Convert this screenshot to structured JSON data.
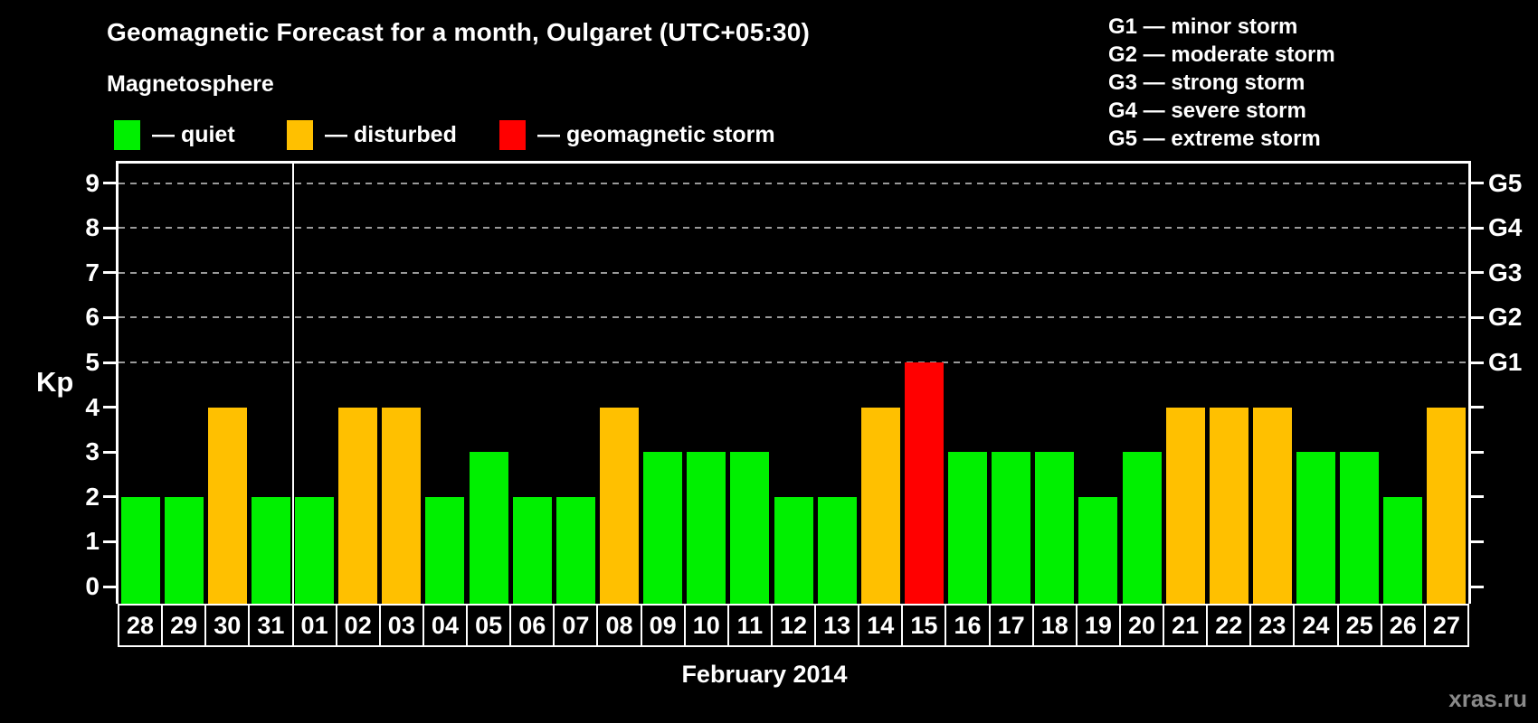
{
  "title": "Geomagnetic Forecast for a month, Oulgaret (UTC+05:30)",
  "magnetosphere_label": "Magnetosphere",
  "legend_items": [
    {
      "key": "quiet",
      "label": "— quiet",
      "color": "#00F000"
    },
    {
      "key": "disturbed",
      "label": "— disturbed",
      "color": "#FFC000"
    },
    {
      "key": "storm",
      "label": "— geomagnetic storm",
      "color": "#FF0000"
    }
  ],
  "storm_scale_legend": [
    "G1 — minor storm",
    "G2 — moderate storm",
    "G3 — strong storm",
    "G4 — severe storm",
    "G5 — extreme storm"
  ],
  "watermark": "xras.ru",
  "chart_data": {
    "type": "bar",
    "title": "Geomagnetic Forecast for a month, Oulgaret (UTC+05:30)",
    "xlabel": "February 2014",
    "ylabel": "Kp",
    "ylim": [
      0,
      9
    ],
    "y_ticks": [
      0,
      1,
      2,
      3,
      4,
      5,
      6,
      7,
      8,
      9
    ],
    "grid": "dashed horizontal gridlines at Kp 5–9 (storm levels G1–G5)",
    "legend_position": "top",
    "right_axis": {
      "labels": [
        "G1",
        "G2",
        "G3",
        "G4",
        "G5"
      ],
      "kp_levels": [
        5,
        6,
        7,
        8,
        9
      ]
    },
    "categories": [
      "28",
      "29",
      "30",
      "31",
      "01",
      "02",
      "03",
      "04",
      "05",
      "06",
      "07",
      "08",
      "09",
      "10",
      "11",
      "12",
      "13",
      "14",
      "15",
      "16",
      "17",
      "18",
      "19",
      "20",
      "21",
      "22",
      "23",
      "24",
      "25",
      "26",
      "27"
    ],
    "values": [
      2,
      2,
      4,
      2,
      2,
      4,
      4,
      2,
      3,
      2,
      2,
      4,
      3,
      3,
      3,
      2,
      2,
      4,
      5,
      3,
      3,
      3,
      2,
      3,
      4,
      4,
      4,
      3,
      3,
      2,
      4
    ],
    "statuses": [
      "quiet",
      "quiet",
      "disturbed",
      "quiet",
      "quiet",
      "disturbed",
      "disturbed",
      "quiet",
      "quiet",
      "quiet",
      "quiet",
      "disturbed",
      "quiet",
      "quiet",
      "quiet",
      "quiet",
      "quiet",
      "disturbed",
      "storm",
      "quiet",
      "quiet",
      "quiet",
      "quiet",
      "quiet",
      "disturbed",
      "disturbed",
      "disturbed",
      "quiet",
      "quiet",
      "quiet",
      "disturbed"
    ],
    "month_separator_after_category": "31",
    "colors": {
      "quiet": "#00F000",
      "disturbed": "#FFC000",
      "storm": "#FF0000"
    }
  }
}
